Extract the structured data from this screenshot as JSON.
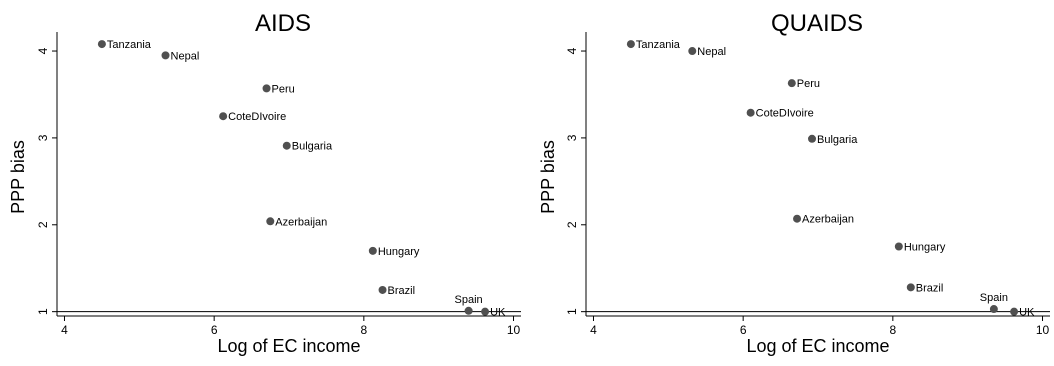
{
  "chart_data": [
    {
      "type": "scatter",
      "title": "AIDS",
      "xlabel": "Log of EC income",
      "ylabel": "PPP bias",
      "xlim": [
        3.9,
        10.1
      ],
      "ylim": [
        0.95,
        4.15
      ],
      "xticks": [
        4,
        6,
        8,
        10
      ],
      "yticks": [
        1,
        2,
        3,
        4
      ],
      "reference_line_y": 1,
      "points": [
        {
          "label": "Tanzania",
          "x": 4.5,
          "y": 4.08
        },
        {
          "label": "Nepal",
          "x": 5.35,
          "y": 3.95
        },
        {
          "label": "Peru",
          "x": 6.7,
          "y": 3.57
        },
        {
          "label": "CoteDIvoire",
          "x": 6.12,
          "y": 3.25
        },
        {
          "label": "Bulgaria",
          "x": 6.97,
          "y": 2.91
        },
        {
          "label": "Azerbaijan",
          "x": 6.75,
          "y": 2.04
        },
        {
          "label": "Hungary",
          "x": 8.12,
          "y": 1.7
        },
        {
          "label": "Brazil",
          "x": 8.25,
          "y": 1.25
        },
        {
          "label": "Spain",
          "x": 9.4,
          "y": 1.01
        },
        {
          "label": "UK",
          "x": 9.62,
          "y": 1.0
        }
      ]
    },
    {
      "type": "scatter",
      "title": "QUAIDS",
      "xlabel": "Log of EC income",
      "ylabel": "PPP bias",
      "xlim": [
        3.9,
        10.1
      ],
      "ylim": [
        0.95,
        4.15
      ],
      "xticks": [
        4,
        6,
        8,
        10
      ],
      "yticks": [
        1,
        2,
        3,
        4
      ],
      "reference_line_y": 1,
      "points": [
        {
          "label": "Tanzania",
          "x": 4.5,
          "y": 4.08
        },
        {
          "label": "Nepal",
          "x": 5.32,
          "y": 4.0
        },
        {
          "label": "Peru",
          "x": 6.65,
          "y": 3.63
        },
        {
          "label": "CoteDIvoire",
          "x": 6.1,
          "y": 3.29
        },
        {
          "label": "Bulgaria",
          "x": 6.92,
          "y": 2.99
        },
        {
          "label": "Azerbaijan",
          "x": 6.72,
          "y": 2.07
        },
        {
          "label": "Hungary",
          "x": 8.08,
          "y": 1.75
        },
        {
          "label": "Brazil",
          "x": 8.24,
          "y": 1.28
        },
        {
          "label": "Spain",
          "x": 9.35,
          "y": 1.03
        },
        {
          "label": "UK",
          "x": 9.62,
          "y": 1.0
        }
      ]
    }
  ]
}
